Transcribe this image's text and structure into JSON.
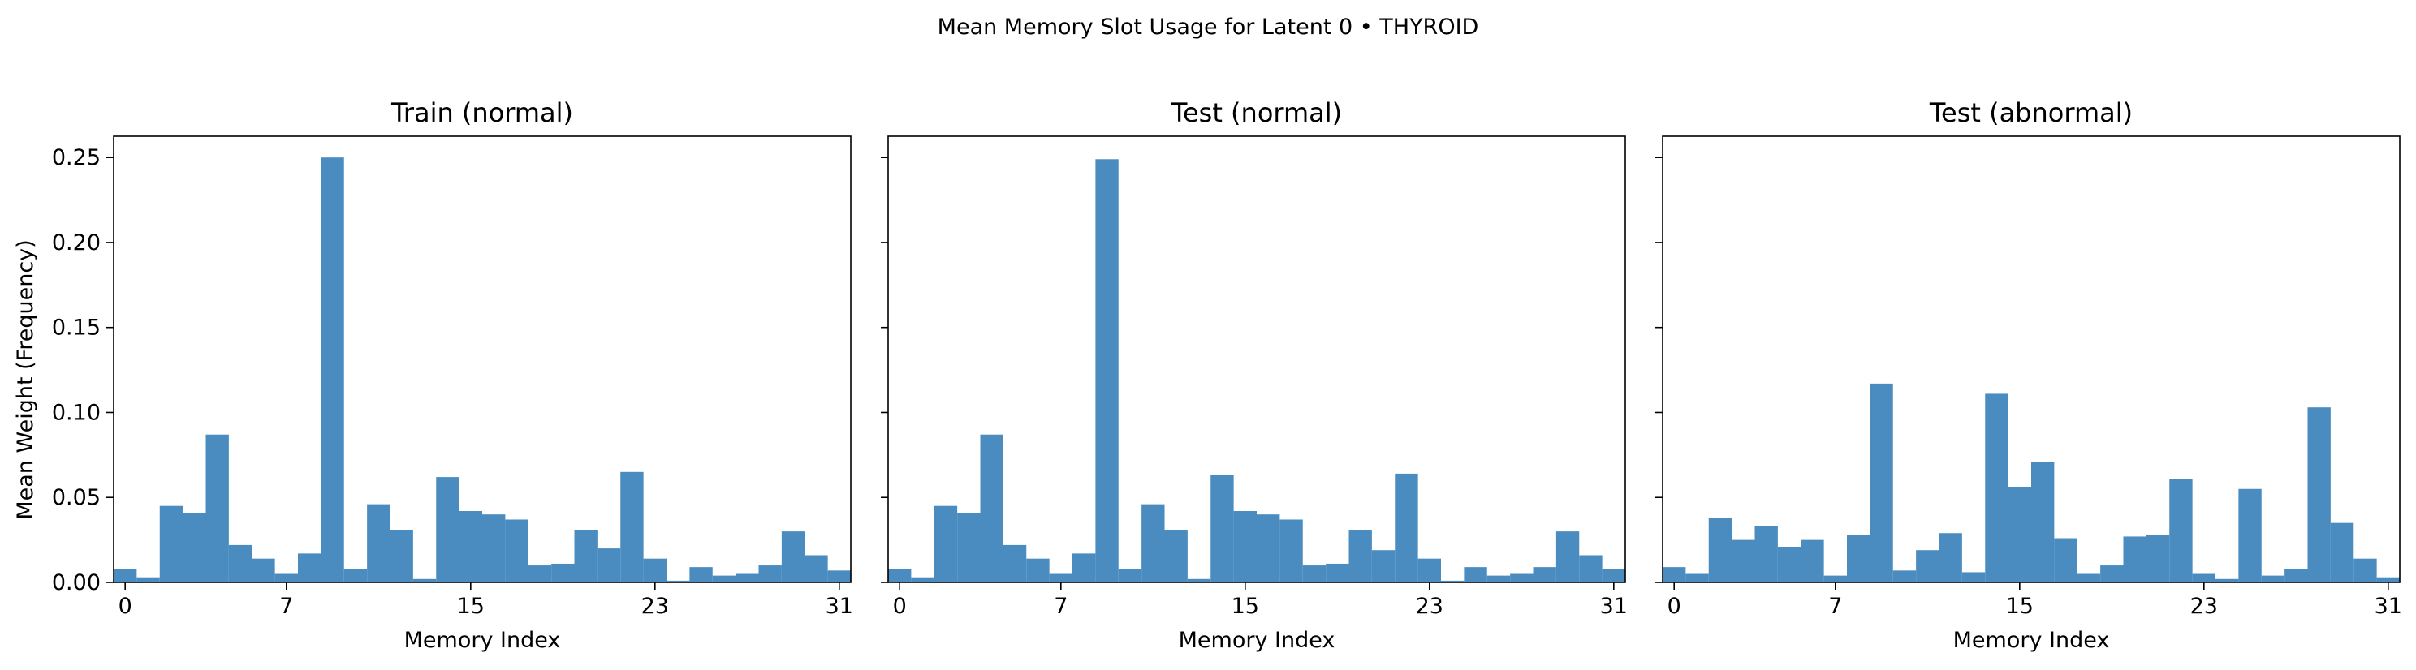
{
  "figure": {
    "title": "Mean Memory Slot Usage for Latent 0 • THYROID",
    "ylabel": "Mean Weight (Frequency)",
    "bar_color": "#4a8cc0"
  },
  "chart_data": [
    {
      "type": "bar",
      "title": "Train (normal)",
      "xlabel": "Memory Index",
      "ylabel": "Mean Weight (Frequency)",
      "x": [
        0,
        1,
        2,
        3,
        4,
        5,
        6,
        7,
        8,
        9,
        10,
        11,
        12,
        13,
        14,
        15,
        16,
        17,
        18,
        19,
        20,
        21,
        22,
        23,
        24,
        25,
        26,
        27,
        28,
        29,
        30,
        31
      ],
      "values": [
        0.008,
        0.003,
        0.045,
        0.041,
        0.087,
        0.022,
        0.014,
        0.005,
        0.017,
        0.25,
        0.008,
        0.046,
        0.031,
        0.002,
        0.062,
        0.042,
        0.04,
        0.037,
        0.01,
        0.011,
        0.031,
        0.02,
        0.065,
        0.014,
        0.001,
        0.009,
        0.004,
        0.005,
        0.01,
        0.03,
        0.016,
        0.007
      ],
      "xticks": [
        0,
        7,
        15,
        23,
        31
      ],
      "yticks": [
        0.0,
        0.05,
        0.1,
        0.15,
        0.2,
        0.25
      ],
      "ytick_labels": [
        "0.00",
        "0.05",
        "0.10",
        "0.15",
        "0.20",
        "0.25"
      ],
      "ylim": [
        0,
        0.2625
      ],
      "xlim": [
        -0.5,
        31.5
      ],
      "grid": false
    },
    {
      "type": "bar",
      "title": "Test (normal)",
      "xlabel": "Memory Index",
      "x": [
        0,
        1,
        2,
        3,
        4,
        5,
        6,
        7,
        8,
        9,
        10,
        11,
        12,
        13,
        14,
        15,
        16,
        17,
        18,
        19,
        20,
        21,
        22,
        23,
        24,
        25,
        26,
        27,
        28,
        29,
        30,
        31
      ],
      "values": [
        0.008,
        0.003,
        0.045,
        0.041,
        0.087,
        0.022,
        0.014,
        0.005,
        0.017,
        0.249,
        0.008,
        0.046,
        0.031,
        0.002,
        0.063,
        0.042,
        0.04,
        0.037,
        0.01,
        0.011,
        0.031,
        0.019,
        0.064,
        0.014,
        0.001,
        0.009,
        0.004,
        0.005,
        0.009,
        0.03,
        0.016,
        0.008
      ],
      "xticks": [
        0,
        7,
        15,
        23,
        31
      ],
      "yticks": [
        0.0,
        0.05,
        0.1,
        0.15,
        0.2,
        0.25
      ],
      "ylim": [
        0,
        0.2625
      ],
      "xlim": [
        -0.5,
        31.5
      ],
      "grid": false
    },
    {
      "type": "bar",
      "title": "Test (abnormal)",
      "xlabel": "Memory Index",
      "x": [
        0,
        1,
        2,
        3,
        4,
        5,
        6,
        7,
        8,
        9,
        10,
        11,
        12,
        13,
        14,
        15,
        16,
        17,
        18,
        19,
        20,
        21,
        22,
        23,
        24,
        25,
        26,
        27,
        28,
        29,
        30,
        31
      ],
      "values": [
        0.009,
        0.005,
        0.038,
        0.025,
        0.033,
        0.021,
        0.025,
        0.004,
        0.028,
        0.117,
        0.007,
        0.019,
        0.029,
        0.006,
        0.111,
        0.056,
        0.071,
        0.026,
        0.005,
        0.01,
        0.027,
        0.028,
        0.061,
        0.005,
        0.002,
        0.055,
        0.004,
        0.008,
        0.103,
        0.035,
        0.014,
        0.003
      ],
      "xticks": [
        0,
        7,
        15,
        23,
        31
      ],
      "yticks": [
        0.0,
        0.05,
        0.1,
        0.15,
        0.2,
        0.25
      ],
      "ylim": [
        0,
        0.2625
      ],
      "xlim": [
        -0.5,
        31.5
      ],
      "grid": false
    }
  ]
}
